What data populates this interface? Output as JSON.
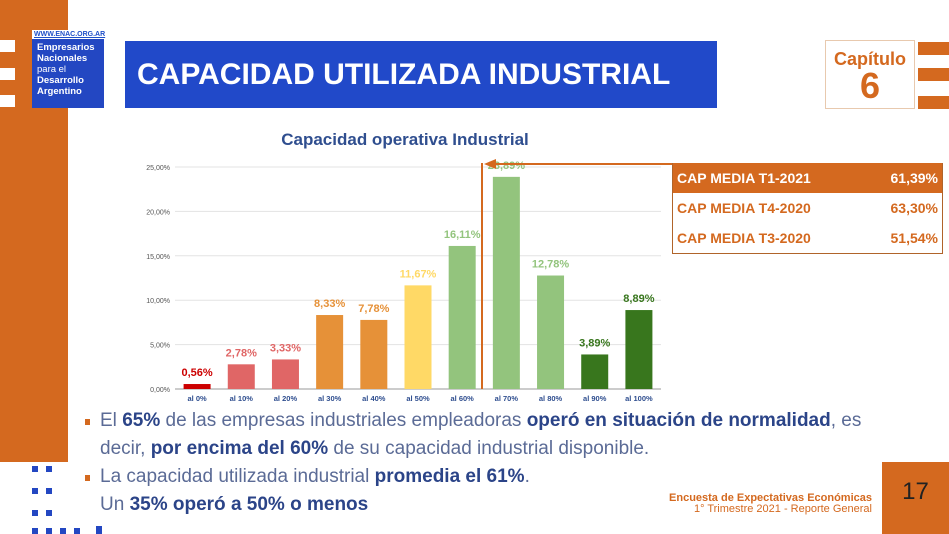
{
  "logo": {
    "url": "WWW.ENAC.ORG.AR",
    "line1": "Empresarios",
    "line2": "Nacionales",
    "line3": "para el",
    "line4": "Desarrollo",
    "line5": "Argentino"
  },
  "header": {
    "title": "CAPACIDAD UTILIZADA INDUSTRIAL",
    "chapter_label": "Capítulo",
    "chapter_number": "6"
  },
  "colors": {
    "orange": "#d4691f",
    "blue": "#2149c9",
    "red": "#cc0000",
    "light_red": "#e06666",
    "dark_orange": "#e69138",
    "yellow": "#ffd966",
    "light_green": "#93c47d",
    "dark_green": "#38761d"
  },
  "chart_data": {
    "type": "bar",
    "title": "Capacidad operativa Industrial",
    "categories": [
      "al 0%",
      "al 10%",
      "al 20%",
      "al 30%",
      "al 40%",
      "al 50%",
      "al 60%",
      "al 70%",
      "al 80%",
      "al 90%",
      "al 100%"
    ],
    "values": [
      0.56,
      2.78,
      3.33,
      8.33,
      7.78,
      11.67,
      16.11,
      23.89,
      12.78,
      3.89,
      8.89
    ],
    "data_labels": [
      "0,56%",
      "2,78%",
      "3,33%",
      "8,33%",
      "7,78%",
      "11,67%",
      "16,11%",
      "23,89%",
      "12,78%",
      "3,89%",
      "8,89%"
    ],
    "bar_colors": [
      "#cc0000",
      "#e06666",
      "#e06666",
      "#e69138",
      "#e69138",
      "#ffd966",
      "#93c47d",
      "#93c47d",
      "#93c47d",
      "#38761d",
      "#38761d"
    ],
    "label_colors": [
      "#cc0000",
      "#e06666",
      "#e06666",
      "#e69138",
      "#e69138",
      "#ffd966",
      "#93c47d",
      "#93c47d",
      "#93c47d",
      "#38761d",
      "#38761d"
    ],
    "yticks": [
      "0,00%",
      "5,00%",
      "10,00%",
      "15,00%",
      "20,00%",
      "25,00%"
    ],
    "ylim": [
      0,
      25
    ],
    "grid": true,
    "legend": "none"
  },
  "cap_table": [
    {
      "label": "CAP MEDIA T1-2021",
      "value": "61,39%"
    },
    {
      "label": "CAP MEDIA T4-2020",
      "value": "63,30%"
    },
    {
      "label": "CAP MEDIA T3-2020",
      "value": "51,54%"
    }
  ],
  "bullets": {
    "b1": {
      "t1": "El ",
      "s1": "65%",
      "t2": " de las empresas industriales empleadoras ",
      "s2": "operó en situación de normalidad",
      "t3": ", es decir, ",
      "s3": "por encima del 60%",
      "t4": " de su capacidad industrial disponible."
    },
    "b2": {
      "t1": "La capacidad utilizada industrial ",
      "s1": "promedia el 61%",
      "t2": "."
    },
    "b3": {
      "t1": "Un ",
      "s1": "35% operó a 50% o menos"
    }
  },
  "footer": {
    "line1": "Encuesta de Expectativas Económicas",
    "line2": "1° Trimestre 2021 - Reporte General",
    "page": "17"
  }
}
